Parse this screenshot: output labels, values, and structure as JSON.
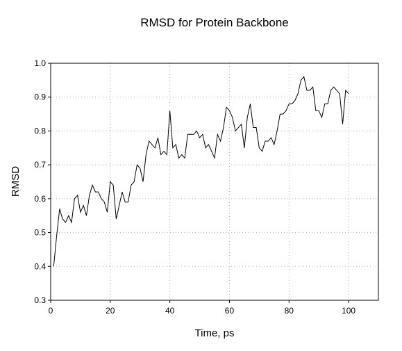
{
  "chart_data": {
    "type": "line",
    "title": "RMSD for Protein Backbone",
    "xlabel": "Time, ps",
    "ylabel": "RMSD",
    "xlim": [
      0,
      110
    ],
    "ylim": [
      0.3,
      1.0
    ],
    "xticks": [
      0,
      20,
      40,
      60,
      80,
      100
    ],
    "yticks": [
      0.3,
      0.4,
      0.5,
      0.6,
      0.7,
      0.8,
      0.9,
      1.0
    ],
    "xtick_labels": [
      "0",
      "20",
      "40",
      "60",
      "80",
      "100"
    ],
    "ytick_labels": [
      "0.3",
      "0.4",
      "0.5",
      "0.6",
      "0.7",
      "0.8",
      "0.9",
      "1.0"
    ],
    "grid": true,
    "line_color": "#000000",
    "grid_color": "#b4b4b4",
    "series": [
      {
        "x": [
          1,
          2,
          3,
          4,
          5,
          6,
          7,
          8,
          9,
          10,
          11,
          12,
          13,
          14,
          15,
          16,
          17,
          18,
          19,
          20,
          21,
          22,
          23,
          24,
          25,
          26,
          27,
          28,
          29,
          30,
          31,
          32,
          33,
          34,
          35,
          36,
          37,
          38,
          39,
          40,
          41,
          42,
          43,
          44,
          45,
          46,
          47,
          48,
          49,
          50,
          51,
          52,
          53,
          54,
          55,
          56,
          57,
          58,
          59,
          60,
          61,
          62,
          63,
          64,
          65,
          66,
          67,
          68,
          69,
          70,
          71,
          72,
          73,
          74,
          75,
          76,
          77,
          78,
          79,
          80,
          81,
          82,
          83,
          84,
          85,
          86,
          87,
          88,
          89,
          90,
          91,
          92,
          93,
          94,
          95,
          96,
          97,
          98,
          99,
          100
        ],
        "y": [
          0.4,
          0.49,
          0.57,
          0.54,
          0.53,
          0.55,
          0.53,
          0.6,
          0.61,
          0.56,
          0.58,
          0.55,
          0.61,
          0.64,
          0.62,
          0.62,
          0.6,
          0.59,
          0.56,
          0.65,
          0.64,
          0.54,
          0.58,
          0.62,
          0.59,
          0.59,
          0.64,
          0.65,
          0.7,
          0.69,
          0.65,
          0.73,
          0.77,
          0.76,
          0.75,
          0.78,
          0.73,
          0.74,
          0.73,
          0.86,
          0.75,
          0.76,
          0.72,
          0.73,
          0.72,
          0.79,
          0.79,
          0.79,
          0.8,
          0.78,
          0.79,
          0.75,
          0.76,
          0.74,
          0.72,
          0.79,
          0.77,
          0.81,
          0.87,
          0.86,
          0.84,
          0.8,
          0.81,
          0.82,
          0.75,
          0.84,
          0.88,
          0.81,
          0.81,
          0.75,
          0.74,
          0.77,
          0.77,
          0.78,
          0.76,
          0.8,
          0.85,
          0.85,
          0.86,
          0.88,
          0.88,
          0.89,
          0.91,
          0.95,
          0.96,
          0.92,
          0.92,
          0.93,
          0.86,
          0.86,
          0.84,
          0.88,
          0.88,
          0.92,
          0.93,
          0.92,
          0.91,
          0.82,
          0.92,
          0.91
        ]
      }
    ]
  }
}
